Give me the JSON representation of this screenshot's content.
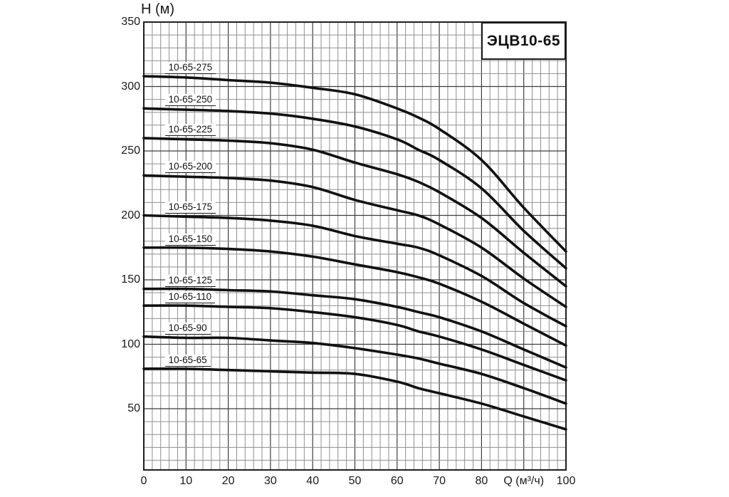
{
  "chart_data": {
    "type": "line",
    "title": "ЭЦВ10-65",
    "xlabel": "Q (м³/ч)",
    "ylabel": "H (м)",
    "xlim": [
      0,
      100
    ],
    "ylim": [
      2.5,
      350
    ],
    "grid": true,
    "x_minor_step": 2,
    "x_major_step": 10,
    "y_minor_step": 10,
    "y_major_step": 50,
    "y_ticks": [
      50,
      100,
      150,
      200,
      250,
      300,
      350
    ],
    "x_ticks": [
      {
        "q": 0,
        "label": "0"
      },
      {
        "q": 10,
        "label": "10"
      },
      {
        "q": 20,
        "label": "20"
      },
      {
        "q": 30,
        "label": "30"
      },
      {
        "q": 40,
        "label": "40"
      },
      {
        "q": 50,
        "label": "50"
      },
      {
        "q": 60,
        "label": "60"
      },
      {
        "q": 70,
        "label": "70"
      },
      {
        "q": 80,
        "label": "80"
      },
      {
        "q": 90,
        "label": "Q (м³/ч)"
      },
      {
        "q": 100,
        "label": "100"
      }
    ],
    "x": [
      0,
      10,
      20,
      30,
      40,
      50,
      60,
      65,
      70,
      80,
      90,
      100
    ],
    "series": [
      {
        "name": "10-65-275",
        "values": [
          308,
          307,
          305,
          303,
          299,
          294,
          283,
          276,
          267,
          243,
          206,
          172
        ]
      },
      {
        "name": "10-65-250",
        "values": [
          283,
          282,
          281,
          279,
          275,
          269,
          259,
          251,
          243,
          221,
          188,
          159
        ]
      },
      {
        "name": "10-65-225",
        "values": [
          260,
          259,
          258,
          256,
          251,
          241,
          232,
          226,
          218,
          198,
          171,
          145
        ]
      },
      {
        "name": "10-65-200",
        "values": [
          231,
          230,
          229,
          227,
          222,
          212,
          204,
          200,
          193,
          175,
          151,
          129
        ]
      },
      {
        "name": "10-65-175",
        "values": [
          200,
          199,
          198,
          196,
          192,
          184,
          178,
          175,
          169,
          153,
          132,
          114
        ]
      },
      {
        "name": "10-65-150",
        "values": [
          175,
          175,
          174,
          172,
          168,
          162,
          156,
          152,
          147,
          133,
          116,
          99
        ]
      },
      {
        "name": "10-65-125",
        "values": [
          143,
          143,
          142,
          141,
          138,
          135,
          129,
          125,
          121,
          110,
          96,
          82
        ]
      },
      {
        "name": "10-65-110",
        "values": [
          130,
          130,
          129,
          128,
          125,
          121,
          115,
          110,
          106,
          96,
          84,
          72
        ]
      },
      {
        "name": "10-65-90",
        "values": [
          106,
          105,
          105,
          103,
          101,
          97,
          92,
          89,
          85,
          77,
          66,
          54
        ]
      },
      {
        "name": "10-65-65",
        "values": [
          81,
          81,
          80,
          79,
          78,
          77,
          71,
          66,
          62,
          54,
          44,
          34
        ]
      }
    ],
    "colors": {
      "curve": "#111111",
      "grid_minor": "#8f8f8f",
      "grid_major": "#3d3d3d",
      "border": "#1f1f1f",
      "background": "#ffffff"
    }
  }
}
